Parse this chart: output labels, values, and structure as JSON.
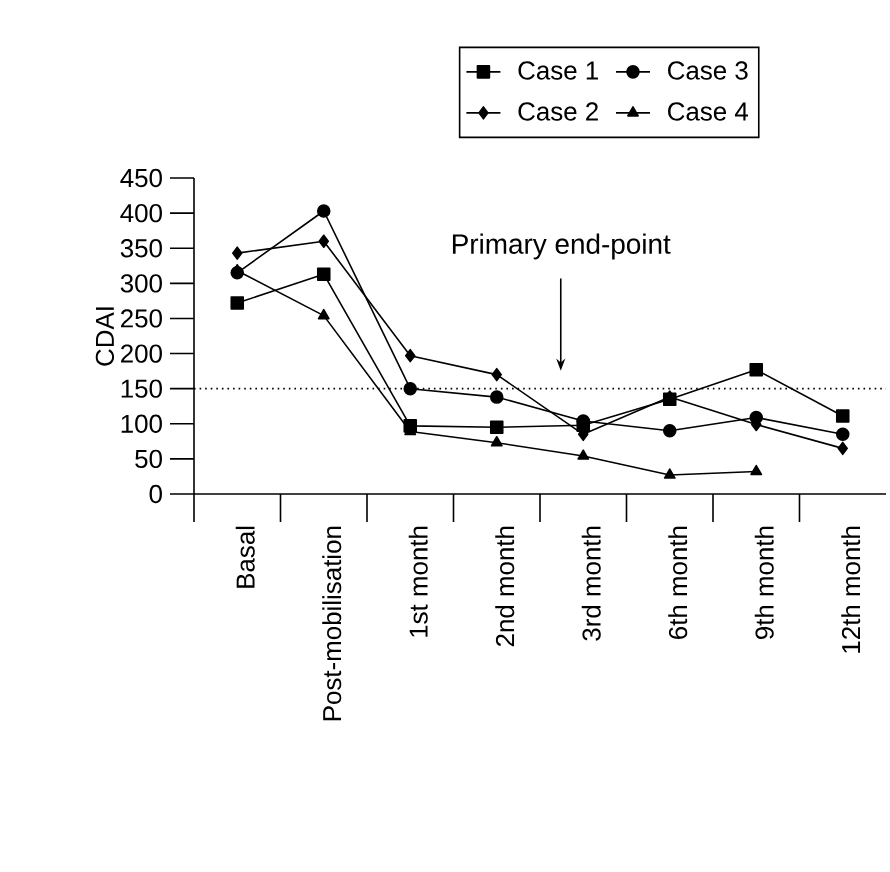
{
  "chart_data": {
    "type": "line",
    "ylabel": "CDAI",
    "categories": [
      "Basal",
      "Post-mobilisation",
      "1st month",
      "2nd month",
      "3rd month",
      "6th month",
      "9th month",
      "12th month"
    ],
    "series": [
      {
        "name": "Case 1",
        "color": "#000000",
        "marker": "square",
        "values": [
          272,
          313,
          97,
          95,
          98,
          135,
          177,
          111
        ]
      },
      {
        "name": "Case 2",
        "color": "#000000",
        "marker": "diamond",
        "values": [
          343,
          360,
          197,
          170,
          85,
          138,
          99,
          65
        ]
      },
      {
        "name": "Case 3",
        "color": "#000000",
        "marker": "circle",
        "values": [
          315,
          403,
          150,
          138,
          104,
          90,
          109,
          85
        ]
      },
      {
        "name": "Case 4",
        "color": "#000000",
        "marker": "triangle",
        "values": [
          318,
          254,
          89,
          73,
          54,
          27,
          32,
          null
        ]
      }
    ],
    "ylim": [
      0,
      450
    ],
    "yticks": [
      0,
      50,
      100,
      150,
      200,
      250,
      300,
      350,
      400,
      450
    ],
    "ref_lines": [
      {
        "axis": "y",
        "value": 150,
        "line_style": "dotted",
        "color": "#000000"
      }
    ],
    "annotations": [
      "Primary end-point"
    ],
    "legend": "top",
    "line_style": "solid",
    "grid": false
  }
}
